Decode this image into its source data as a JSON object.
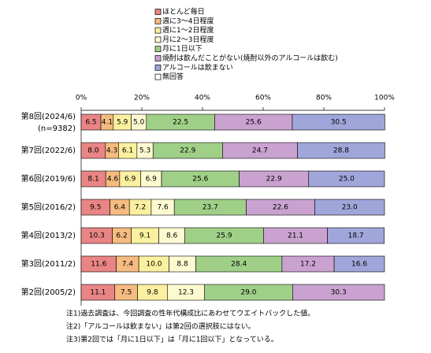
{
  "chart_data": {
    "type": "stacked-bar-horizontal",
    "categories": [
      "第8回(2024/6)",
      "第7回(2022/6)",
      "第6回(2019/6)",
      "第5回(2016/2)",
      "第4回(2013/2)",
      "第3回(2011/2)",
      "第2回(2005/2)"
    ],
    "sample_size_label": "(n=9382)",
    "xlim": [
      0,
      100
    ],
    "xticks": [
      {
        "value": 0,
        "label": "0%"
      },
      {
        "value": 20,
        "label": "20%"
      },
      {
        "value": 40,
        "label": "40%"
      },
      {
        "value": 60,
        "label": "60%"
      },
      {
        "value": 80,
        "label": "80%"
      },
      {
        "value": 100,
        "label": "100%"
      }
    ],
    "series": [
      {
        "name": "ほとんど毎日",
        "color": "#e98585",
        "values": [
          6.5,
          8.0,
          8.1,
          9.5,
          10.3,
          11.6,
          11.1
        ],
        "value_labels": [
          "6.5",
          "8.0",
          "8.1",
          "9.5",
          "10.3",
          "11.6",
          "11.1"
        ]
      },
      {
        "name": "週に3～4日程度",
        "color": "#f6bb80",
        "values": [
          4.1,
          4.3,
          4.6,
          6.4,
          6.2,
          7.4,
          7.5
        ],
        "value_labels": [
          "4.1",
          "4.3",
          "4.6",
          "6.4",
          "6.2",
          "7.4",
          "7.5"
        ]
      },
      {
        "name": "週に1～2日程度",
        "color": "#fbf0a0",
        "values": [
          5.9,
          6.1,
          6.9,
          7.2,
          9.1,
          10.0,
          9.8
        ],
        "value_labels": [
          "5.9",
          "6.1",
          "6.9",
          "7.2",
          "9.1",
          "10.0",
          "9.8"
        ]
      },
      {
        "name": "月に2～3日程度",
        "color": "#fdfad2",
        "values": [
          5.0,
          5.3,
          6.9,
          7.6,
          8.6,
          8.8,
          12.3
        ],
        "value_labels": [
          "5.0",
          "5.3",
          "6.9",
          "7.6",
          "8.6",
          "8.8",
          "12.3"
        ]
      },
      {
        "name": "月に1日以下",
        "color": "#a0d088",
        "values": [
          22.5,
          22.9,
          25.6,
          23.7,
          25.9,
          28.4,
          29.0
        ],
        "value_labels": [
          "22.5",
          "22.9",
          "25.6",
          "23.7",
          "25.9",
          "28.4",
          "29.0"
        ]
      },
      {
        "name": "焼酎は飲んだことがない(焼酎以外のアルコールは飲む)",
        "color": "#c9a2cf",
        "values": [
          25.6,
          24.7,
          22.9,
          22.6,
          21.1,
          17.2,
          30.3
        ],
        "value_labels": [
          "25.6",
          "24.7",
          "22.9",
          "22.6",
          "21.1",
          "17.2",
          "30.3"
        ]
      },
      {
        "name": "アルコールは飲まない",
        "color": "#a0a6da",
        "values": [
          30.5,
          28.8,
          25.0,
          23.0,
          18.7,
          16.6,
          null
        ],
        "value_labels": [
          "30.5",
          "28.8",
          "25.0",
          "23.0",
          "18.7",
          "16.6",
          null
        ]
      },
      {
        "name": "無回答",
        "color": "#ffffff",
        "values": [
          0,
          0,
          0,
          0,
          0,
          0,
          0
        ]
      }
    ],
    "notes": [
      "注1)過去調査は、今回調査の性年代構成比にあわせてウエイトバックした値。",
      "注2)「アルコールは飲まない」は第2回の選択肢にはない。",
      "注3)第2回では「月に1日以下」は「月に1回以下」となっている。"
    ]
  }
}
